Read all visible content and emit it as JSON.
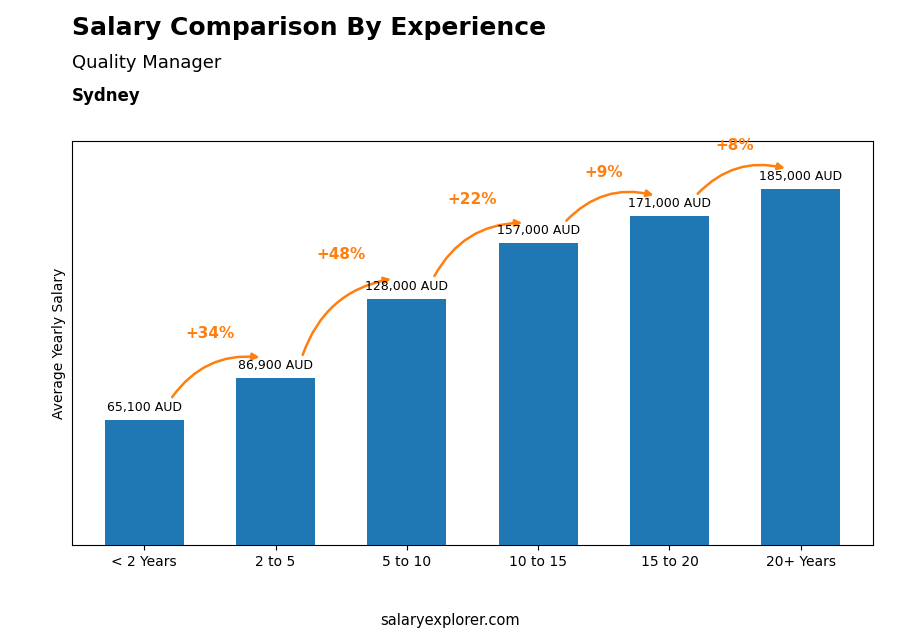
{
  "chart_data": {
    "type": "bar",
    "title": "Salary Comparison By Experience",
    "subtitle": "Quality Manager",
    "city": "Sydney",
    "categories": [
      "< 2 Years",
      "2 to 5",
      "5 to 10",
      "10 to 15",
      "15 to 20",
      "20+ Years"
    ],
    "values": [
      65100,
      86900,
      128000,
      157000,
      171000,
      185000
    ],
    "value_labels": [
      "65,100 AUD",
      "86,900 AUD",
      "128,000 AUD",
      "157,000 AUD",
      "171,000 AUD",
      "185,000 AUD"
    ],
    "data_labels": true,
    "annotations": [
      "+34%",
      "+48%",
      "+22%",
      "+9%",
      "+8%"
    ],
    "y_label": "Average Yearly Salary",
    "ylim": [
      0,
      210000
    ],
    "yticks": [],
    "tick_labels": "x",
    "footer": "salaryexplorer.com"
  }
}
